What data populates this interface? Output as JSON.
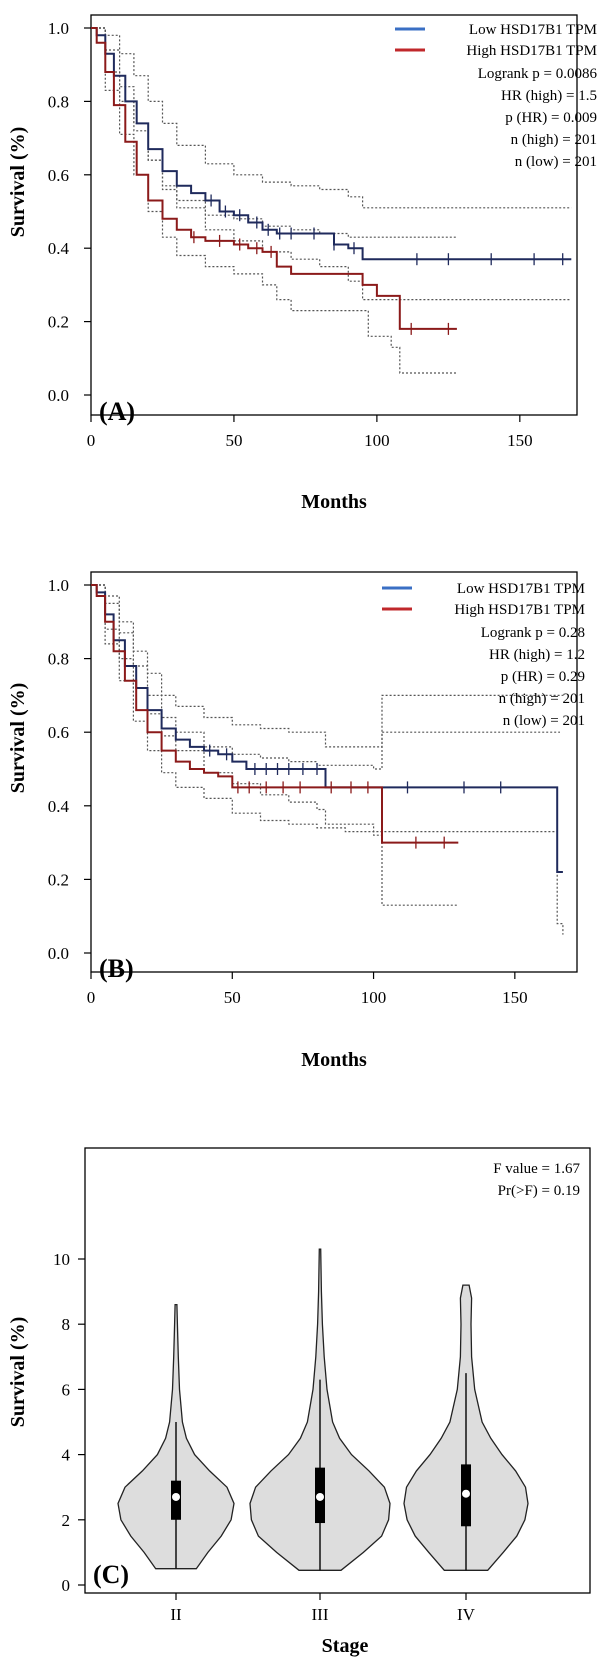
{
  "chart_data": [
    {
      "panel_label": "(A)",
      "type": "line",
      "xlabel": "Months",
      "ylabel": "Survival (%)",
      "xlim": [
        0,
        170
      ],
      "ylim": [
        0,
        1.05
      ],
      "xticks": [
        0,
        50,
        100,
        150
      ],
      "yticks": [
        "0.0",
        "0.2",
        "0.4",
        "0.6",
        "0.8",
        "1.0"
      ],
      "legend": {
        "position": "top-right",
        "entries": [
          "Low HSD17B1 TPM",
          "High HSD17B1 TPM"
        ]
      },
      "stats": [
        "Logrank p = 0.0086",
        "HR (high) = 1.5",
        "p (HR) = 0.009",
        "n (high) = 201",
        "n (low) = 201"
      ],
      "colors": {
        "low": "#1f2a5c",
        "high": "#8b1a1a",
        "low_legend": "#3a6fc4",
        "high_legend": "#c0282b",
        "ci": "#555555"
      },
      "series": [
        {
          "name": "Low HSD17B1 TPM",
          "color_key": "low",
          "x": [
            0,
            2,
            5,
            8,
            12,
            16,
            20,
            25,
            30,
            35,
            40,
            45,
            50,
            55,
            60,
            65,
            70,
            75,
            80,
            85,
            90,
            95,
            100,
            110,
            120,
            130,
            140,
            150,
            160,
            168
          ],
          "y": [
            1.0,
            0.98,
            0.93,
            0.87,
            0.8,
            0.74,
            0.67,
            0.61,
            0.57,
            0.55,
            0.53,
            0.5,
            0.49,
            0.47,
            0.45,
            0.44,
            0.44,
            0.44,
            0.44,
            0.41,
            0.4,
            0.37,
            0.37,
            0.37,
            0.37,
            0.37,
            0.37,
            0.37,
            0.37,
            0.37
          ],
          "censors": [
            42,
            47,
            52,
            58,
            62,
            66,
            70,
            78,
            85,
            92,
            114,
            125,
            140,
            155,
            165
          ]
        },
        {
          "name": "High HSD17B1 TPM",
          "color_key": "high",
          "x": [
            0,
            2,
            5,
            8,
            12,
            16,
            20,
            25,
            30,
            35,
            40,
            45,
            50,
            55,
            60,
            65,
            70,
            80,
            90,
            95,
            100,
            105,
            108,
            115,
            125,
            128
          ],
          "y": [
            1.0,
            0.96,
            0.88,
            0.79,
            0.69,
            0.6,
            0.53,
            0.48,
            0.45,
            0.43,
            0.42,
            0.42,
            0.41,
            0.4,
            0.39,
            0.35,
            0.33,
            0.33,
            0.33,
            0.3,
            0.27,
            0.27,
            0.18,
            0.18,
            0.18,
            0.18
          ],
          "censors": [
            36,
            45,
            52,
            58,
            63,
            112,
            125
          ]
        }
      ],
      "ci": [
        {
          "x": [
            0,
            5,
            10,
            15,
            20,
            25,
            30,
            40,
            50,
            60,
            70,
            80,
            90,
            95,
            110,
            130,
            150,
            168
          ],
          "y": [
            1.0,
            0.98,
            0.93,
            0.87,
            0.8,
            0.74,
            0.68,
            0.63,
            0.6,
            0.58,
            0.57,
            0.56,
            0.54,
            0.51,
            0.51,
            0.51,
            0.51,
            0.51
          ]
        },
        {
          "x": [
            0,
            5,
            10,
            15,
            20,
            25,
            30,
            40,
            50,
            60,
            70,
            80,
            90,
            95,
            110,
            130,
            150,
            168
          ],
          "y": [
            1.0,
            0.88,
            0.8,
            0.72,
            0.64,
            0.56,
            0.51,
            0.45,
            0.42,
            0.39,
            0.37,
            0.35,
            0.31,
            0.26,
            0.26,
            0.26,
            0.26,
            0.26
          ]
        },
        {
          "x": [
            0,
            5,
            10,
            15,
            20,
            25,
            30,
            40,
            50,
            60,
            70,
            80,
            90,
            100,
            110,
            128
          ],
          "y": [
            1.0,
            0.94,
            0.84,
            0.74,
            0.64,
            0.57,
            0.53,
            0.49,
            0.48,
            0.46,
            0.45,
            0.44,
            0.43,
            0.43,
            0.43,
            0.43
          ]
        },
        {
          "x": [
            0,
            5,
            10,
            15,
            20,
            25,
            30,
            40,
            50,
            60,
            65,
            70,
            80,
            90,
            97,
            105,
            108,
            128
          ],
          "y": [
            1.0,
            0.83,
            0.71,
            0.6,
            0.5,
            0.43,
            0.38,
            0.35,
            0.33,
            0.3,
            0.26,
            0.23,
            0.23,
            0.23,
            0.16,
            0.13,
            0.06,
            0.06
          ]
        }
      ]
    },
    {
      "panel_label": "(B)",
      "type": "line",
      "xlabel": "Months",
      "ylabel": "Survival (%)",
      "xlim": [
        0,
        172
      ],
      "ylim": [
        0,
        1.05
      ],
      "xticks": [
        0,
        50,
        100,
        150
      ],
      "yticks": [
        "0.0",
        "0.2",
        "0.4",
        "0.6",
        "0.8",
        "1.0"
      ],
      "legend": {
        "position": "top-right",
        "entries": [
          "Low HSD17B1 TPM",
          "High HSD17B1 TPM"
        ]
      },
      "stats": [
        "Logrank p = 0.28",
        "HR (high) = 1.2",
        "p (HR) = 0.29",
        "n (high) = 201",
        "n (low) = 201"
      ],
      "colors": {
        "low": "#1f2a5c",
        "high": "#8b1a1a",
        "low_legend": "#3a6fc4",
        "high_legend": "#c0282b",
        "ci": "#555555"
      },
      "series": [
        {
          "name": "Low HSD17B1 TPM",
          "color_key": "low",
          "x": [
            0,
            2,
            5,
            8,
            12,
            16,
            20,
            25,
            30,
            35,
            40,
            45,
            50,
            55,
            60,
            70,
            80,
            83,
            90,
            100,
            110,
            120,
            130,
            140,
            150,
            160,
            165,
            167
          ],
          "y": [
            1.0,
            0.98,
            0.92,
            0.85,
            0.78,
            0.72,
            0.66,
            0.61,
            0.58,
            0.56,
            0.55,
            0.54,
            0.52,
            0.5,
            0.5,
            0.5,
            0.5,
            0.45,
            0.45,
            0.45,
            0.45,
            0.45,
            0.45,
            0.45,
            0.45,
            0.45,
            0.22,
            0.22
          ],
          "censors": [
            42,
            48,
            58,
            62,
            66,
            70,
            75,
            80,
            112,
            132,
            145
          ]
        },
        {
          "name": "High HSD17B1 TPM",
          "color_key": "high",
          "x": [
            0,
            2,
            5,
            8,
            12,
            16,
            20,
            25,
            30,
            35,
            40,
            45,
            50,
            55,
            60,
            70,
            80,
            90,
            100,
            103,
            110,
            120,
            130
          ],
          "y": [
            1.0,
            0.97,
            0.9,
            0.82,
            0.74,
            0.66,
            0.6,
            0.55,
            0.52,
            0.5,
            0.49,
            0.48,
            0.45,
            0.45,
            0.45,
            0.45,
            0.45,
            0.45,
            0.45,
            0.3,
            0.3,
            0.3,
            0.3
          ],
          "censors": [
            52,
            56,
            62,
            68,
            74,
            85,
            92,
            98,
            115,
            125
          ]
        }
      ],
      "ci": [
        {
          "x": [
            0,
            5,
            10,
            15,
            20,
            25,
            30,
            40,
            50,
            60,
            70,
            80,
            83,
            100,
            103,
            130,
            150,
            165,
            167
          ],
          "y": [
            1.0,
            0.97,
            0.9,
            0.82,
            0.76,
            0.7,
            0.67,
            0.64,
            0.62,
            0.61,
            0.6,
            0.6,
            0.56,
            0.56,
            0.7,
            0.7,
            0.7,
            0.7,
            0.7
          ]
        },
        {
          "x": [
            0,
            5,
            10,
            15,
            20,
            25,
            30,
            40,
            50,
            60,
            70,
            80,
            83,
            100,
            130,
            150,
            165,
            167
          ],
          "y": [
            1.0,
            0.88,
            0.8,
            0.72,
            0.65,
            0.59,
            0.55,
            0.49,
            0.46,
            0.43,
            0.41,
            0.39,
            0.35,
            0.33,
            0.33,
            0.33,
            0.08,
            0.05
          ]
        },
        {
          "x": [
            0,
            5,
            10,
            15,
            20,
            25,
            30,
            40,
            50,
            60,
            70,
            80,
            90,
            100,
            103,
            130,
            150,
            166
          ],
          "y": [
            1.0,
            0.95,
            0.87,
            0.78,
            0.7,
            0.64,
            0.6,
            0.56,
            0.54,
            0.53,
            0.52,
            0.51,
            0.51,
            0.5,
            0.6,
            0.6,
            0.6,
            0.6
          ]
        },
        {
          "x": [
            0,
            5,
            10,
            15,
            20,
            25,
            30,
            40,
            50,
            60,
            70,
            80,
            90,
            100,
            103,
            130
          ],
          "y": [
            1.0,
            0.84,
            0.74,
            0.63,
            0.55,
            0.49,
            0.45,
            0.42,
            0.38,
            0.36,
            0.35,
            0.34,
            0.33,
            0.32,
            0.13,
            0.13
          ]
        }
      ]
    },
    {
      "panel_label": "(C)",
      "type": "violin",
      "xlabel": "Stage",
      "ylabel": "Survival (%)",
      "ylim": [
        0,
        11.7
      ],
      "yticks": [
        0,
        2,
        4,
        6,
        8,
        10
      ],
      "categories": [
        "II",
        "III",
        "IV"
      ],
      "stats": [
        "F value = 1.67",
        "Pr(>F) = 0.19"
      ],
      "fill": "#dddddd",
      "violins": [
        {
          "category": "II",
          "min": 0.5,
          "max": 8.6,
          "q1": 2.0,
          "median": 2.7,
          "q3": 3.2,
          "whisker_low": 0.5,
          "whisker_high": 5.0,
          "profile": [
            [
              0.5,
              0.35
            ],
            [
              1.0,
              0.55
            ],
            [
              1.5,
              0.78
            ],
            [
              2.0,
              0.95
            ],
            [
              2.5,
              1.0
            ],
            [
              3.0,
              0.88
            ],
            [
              3.5,
              0.58
            ],
            [
              4.0,
              0.32
            ],
            [
              4.5,
              0.18
            ],
            [
              5.0,
              0.11
            ],
            [
              6.0,
              0.06
            ],
            [
              7.0,
              0.04
            ],
            [
              8.0,
              0.025
            ],
            [
              8.6,
              0.015
            ]
          ]
        },
        {
          "category": "III",
          "min": 0.45,
          "max": 10.3,
          "q1": 1.9,
          "median": 2.7,
          "q3": 3.6,
          "whisker_low": 0.45,
          "whisker_high": 6.3,
          "profile": [
            [
              0.45,
              0.3
            ],
            [
              1.0,
              0.62
            ],
            [
              1.5,
              0.88
            ],
            [
              2.0,
              0.98
            ],
            [
              2.5,
              1.0
            ],
            [
              3.0,
              0.92
            ],
            [
              3.5,
              0.7
            ],
            [
              4.0,
              0.45
            ],
            [
              4.5,
              0.28
            ],
            [
              5.0,
              0.18
            ],
            [
              6.0,
              0.1
            ],
            [
              7.0,
              0.06
            ],
            [
              8.0,
              0.035
            ],
            [
              9.0,
              0.02
            ],
            [
              10.3,
              0.01
            ]
          ]
        },
        {
          "category": "IV",
          "min": 0.45,
          "max": 9.2,
          "q1": 1.8,
          "median": 2.8,
          "q3": 3.7,
          "whisker_low": 0.45,
          "whisker_high": 6.5,
          "profile": [
            [
              0.45,
              0.35
            ],
            [
              1.0,
              0.6
            ],
            [
              1.5,
              0.82
            ],
            [
              2.0,
              0.95
            ],
            [
              2.5,
              1.0
            ],
            [
              3.0,
              0.96
            ],
            [
              3.5,
              0.8
            ],
            [
              4.0,
              0.58
            ],
            [
              4.5,
              0.4
            ],
            [
              5.0,
              0.26
            ],
            [
              6.0,
              0.14
            ],
            [
              7.0,
              0.09
            ],
            [
              8.0,
              0.08
            ],
            [
              8.8,
              0.09
            ],
            [
              9.2,
              0.05
            ]
          ]
        }
      ]
    }
  ]
}
